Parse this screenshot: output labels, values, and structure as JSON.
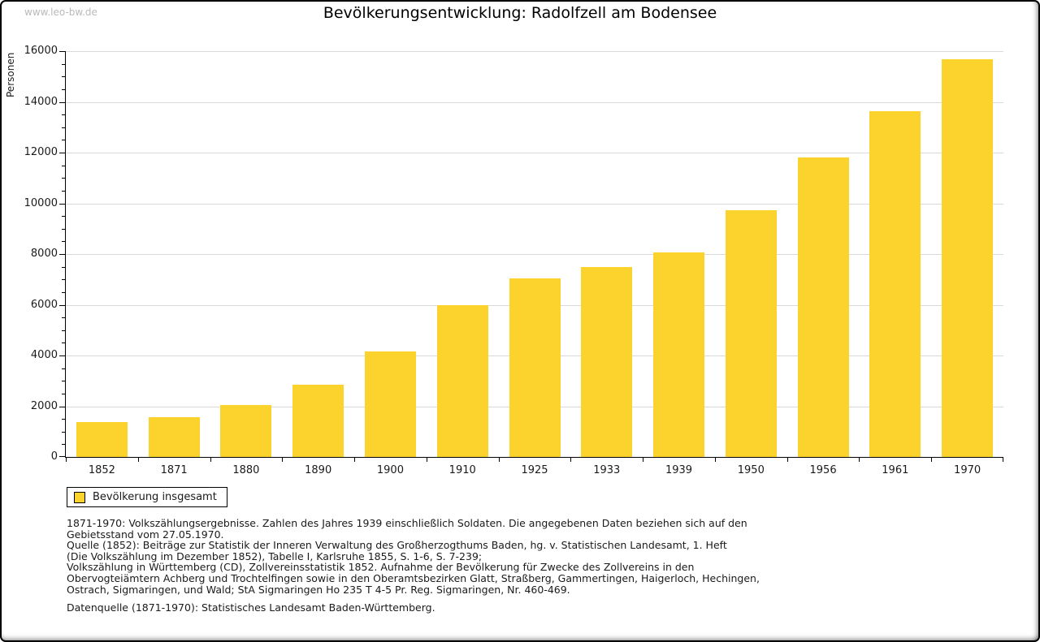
{
  "watermark": "www.leo-bw.de",
  "legend": {
    "label": "Bevölkerung insgesamt"
  },
  "colors": {
    "bar": "#fcd32c",
    "grid": "#d9d9d9",
    "axis": "#000000",
    "watermark": "#b9b9b9"
  },
  "chart_data": {
    "type": "bar",
    "title": "Bevölkerungsentwicklung: Radolfzell am Bodensee",
    "xlabel": "",
    "ylabel": "Personen",
    "categories": [
      "1852",
      "1871",
      "1880",
      "1890",
      "1900",
      "1910",
      "1925",
      "1933",
      "1939",
      "1950",
      "1956",
      "1961",
      "1970"
    ],
    "series": [
      {
        "name": "Bevölkerung insgesamt",
        "values": [
          1380,
          1558,
          2036,
          2841,
          4173,
          5998,
          7041,
          7480,
          8070,
          9726,
          11801,
          13628,
          15683
        ]
      }
    ],
    "ylim": [
      0,
      16000
    ],
    "ytick_step": 2000,
    "yminor_tick_step": 500,
    "yticks": [
      0,
      2000,
      4000,
      6000,
      8000,
      10000,
      12000,
      14000,
      16000
    ],
    "grid": true,
    "legend_position": "bottom-left",
    "bar_color": "#fcd32c"
  },
  "notes": {
    "lines": [
      "1871-1970: Volkszählungsergebnisse. Zahlen des Jahres 1939 einschließlich Soldaten. Die angegebenen Daten beziehen sich auf den",
      "Gebietsstand vom 27.05.1970.",
      "Quelle (1852): Beiträge zur Statistik der Inneren Verwaltung des Großherzogthums Baden, hg. v. Statistischen Landesamt, 1. Heft",
      "(Die Volkszählung im Dezember 1852), Tabelle I, Karlsruhe 1855, S. 1-6, S. 7-239;",
      "Volkszählung in Württemberg (CD), Zollvereinsstatistik 1852. Aufnahme der Bevölkerung für Zwecke des Zollvereins in den",
      "Obervogteiämtern Achberg und Trochtelfingen sowie in den Oberamtsbezirken Glatt, Straßberg, Gammertingen, Haigerloch, Hechingen,",
      "Ostrach, Sigmaringen, und Wald; StA Sigmaringen Ho 235 T 4-5 Pr. Reg. Sigmaringen, Nr. 460-469."
    ],
    "datenquelle": "Datenquelle (1871-1970): Statistisches Landesamt Baden-Württemberg."
  }
}
